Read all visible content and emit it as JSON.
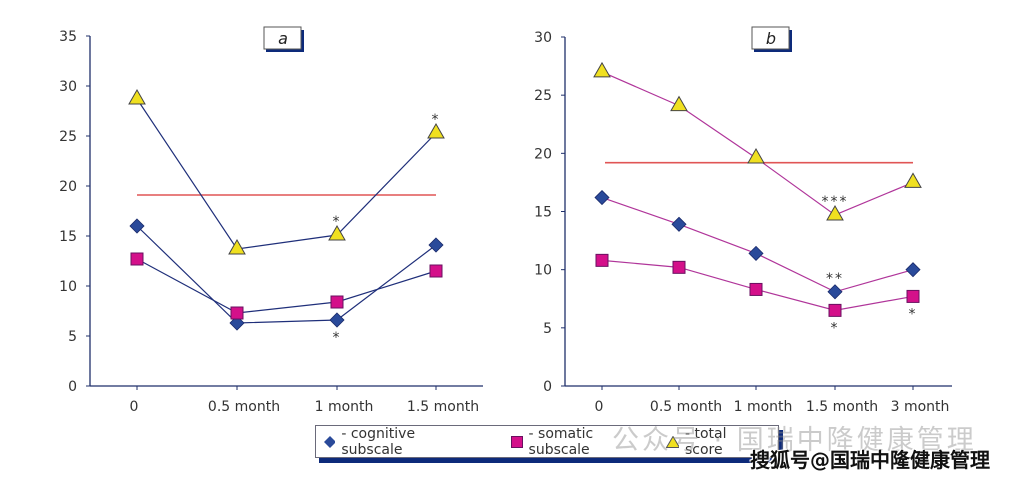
{
  "chart_data": [
    {
      "type": "line",
      "title": "a",
      "xlabel": "",
      "ylabel": "",
      "categories": [
        "0",
        "0.5 month",
        "1 month",
        "1.5 month"
      ],
      "ylim": [
        0,
        35
      ],
      "yticks": [
        0,
        5,
        10,
        15,
        20,
        25,
        30,
        35
      ],
      "series": [
        {
          "name": "cognitive subscale",
          "marker": "diamond",
          "values": [
            16.0,
            6.3,
            6.6,
            14.1
          ]
        },
        {
          "name": "somatic subscale",
          "marker": "square",
          "values": [
            12.7,
            7.3,
            8.4,
            11.5
          ]
        },
        {
          "name": "total score",
          "marker": "triangle",
          "values": [
            28.7,
            13.7,
            15.1,
            25.3
          ]
        }
      ],
      "line_color": "#1f2f7a",
      "reference_line": {
        "value": 19.1,
        "color": "#e05555"
      },
      "annotations": [
        {
          "series": "total score",
          "category": "1 month",
          "text": "*",
          "position": "above"
        },
        {
          "series": "total score",
          "category": "1.5 month",
          "text": "*",
          "position": "above"
        },
        {
          "series": "cognitive subscale",
          "category": "1 month",
          "text": "*",
          "position": "below"
        }
      ],
      "grid": false
    },
    {
      "type": "line",
      "title": "b",
      "xlabel": "",
      "ylabel": "",
      "categories": [
        "0",
        "0.5 month",
        "1 month",
        "1.5 month",
        "3 month"
      ],
      "ylim": [
        0,
        30
      ],
      "yticks": [
        0,
        5,
        10,
        15,
        20,
        25,
        30
      ],
      "series": [
        {
          "name": "cognitive subscale",
          "marker": "diamond",
          "values": [
            16.2,
            13.9,
            11.4,
            8.1,
            10.0
          ]
        },
        {
          "name": "somatic subscale",
          "marker": "square",
          "values": [
            10.8,
            10.2,
            8.3,
            6.5,
            7.7
          ]
        },
        {
          "name": "total score",
          "marker": "triangle",
          "values": [
            27.0,
            24.1,
            19.6,
            14.7,
            17.5
          ]
        }
      ],
      "line_color": "#b0359a",
      "reference_line": {
        "value": 19.2,
        "color": "#e05555"
      },
      "annotations": [
        {
          "series": "total score",
          "category": "1.5 month",
          "text": "***",
          "position": "above"
        },
        {
          "series": "cognitive subscale",
          "category": "1.5 month",
          "text": "**",
          "position": "above"
        },
        {
          "series": "somatic subscale",
          "category": "1.5 month",
          "text": "*",
          "position": "below"
        },
        {
          "series": "somatic subscale",
          "category": "3 month",
          "text": "*",
          "position": "below"
        }
      ],
      "grid": false
    }
  ],
  "legend": {
    "items": [
      {
        "label": "- cognitive subscale",
        "marker": "diamond",
        "color": "#2a4a9a"
      },
      {
        "label": "- somatic subscale",
        "marker": "square",
        "color": "#d4108a"
      },
      {
        "label": "- total score",
        "marker": "triangle",
        "color": "#f0e020"
      }
    ]
  },
  "colors": {
    "diamond": "#2a4a9a",
    "square": "#d4108a",
    "triangle": "#f0e020",
    "axis": "#1f2f6a"
  },
  "watermark": {
    "faint": "公众号 · 国瑞中降健康管理",
    "bold": "搜狐号@国瑞中隆健康管理"
  }
}
